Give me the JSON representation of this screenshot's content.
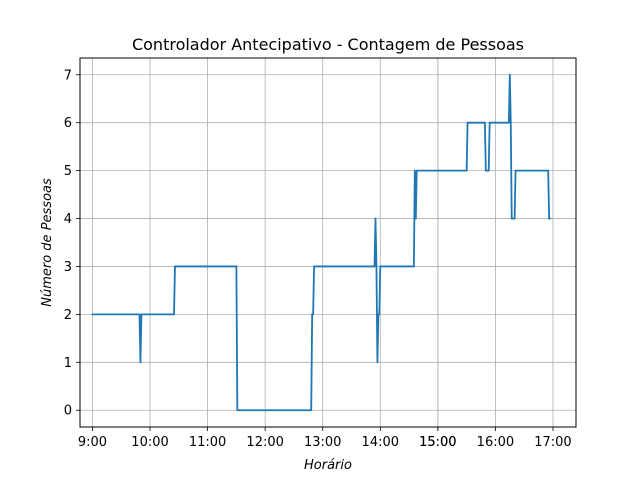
{
  "chart_data": {
    "type": "line",
    "title": "Controlador Antecipativo - Contagem de Pessoas",
    "xlabel": "Horário",
    "ylabel": "Número de Pessoas",
    "x_unit": "time of day (HH:MM)",
    "xlim": [
      "08:47",
      "17:24"
    ],
    "ylim": [
      -0.35,
      7.35
    ],
    "grid": true,
    "x_ticks": [
      "9:00",
      "10:00",
      "11:00",
      "12:00",
      "13:00",
      "14:00",
      "15:00",
      "15:00",
      "16:00",
      "17:00"
    ],
    "y_ticks": [
      "0",
      "1",
      "2",
      "3",
      "4",
      "5",
      "6",
      "7"
    ],
    "series": [
      {
        "color": "#1f77b4",
        "step": true,
        "points": [
          {
            "x": "09:00",
            "y": 2
          },
          {
            "x": "09:49",
            "y": 2
          },
          {
            "x": "09:50",
            "y": 1
          },
          {
            "x": "09:51",
            "y": 2
          },
          {
            "x": "10:25",
            "y": 2
          },
          {
            "x": "10:26",
            "y": 3
          },
          {
            "x": "11:30",
            "y": 3
          },
          {
            "x": "11:31",
            "y": 0
          },
          {
            "x": "12:48",
            "y": 0
          },
          {
            "x": "12:49",
            "y": 2
          },
          {
            "x": "12:50",
            "y": 2
          },
          {
            "x": "12:51",
            "y": 3
          },
          {
            "x": "13:54",
            "y": 3
          },
          {
            "x": "13:55",
            "y": 4
          },
          {
            "x": "13:56",
            "y": 3
          },
          {
            "x": "13:57",
            "y": 1
          },
          {
            "x": "13:58",
            "y": 2
          },
          {
            "x": "13:59",
            "y": 2
          },
          {
            "x": "14:00",
            "y": 3
          },
          {
            "x": "14:35",
            "y": 3
          },
          {
            "x": "14:36",
            "y": 5
          },
          {
            "x": "14:37",
            "y": 4
          },
          {
            "x": "14:38",
            "y": 5
          },
          {
            "x": "15:30",
            "y": 5
          },
          {
            "x": "15:31",
            "y": 6
          },
          {
            "x": "15:49",
            "y": 6
          },
          {
            "x": "15:50",
            "y": 5
          },
          {
            "x": "15:53",
            "y": 5
          },
          {
            "x": "15:54",
            "y": 6
          },
          {
            "x": "16:14",
            "y": 6
          },
          {
            "x": "16:15",
            "y": 7
          },
          {
            "x": "16:16",
            "y": 6
          },
          {
            "x": "16:17",
            "y": 4
          },
          {
            "x": "16:20",
            "y": 4
          },
          {
            "x": "16:21",
            "y": 5
          },
          {
            "x": "16:55",
            "y": 5
          },
          {
            "x": "16:56",
            "y": 4
          },
          {
            "x": "16:57",
            "y": 4
          }
        ]
      }
    ]
  }
}
